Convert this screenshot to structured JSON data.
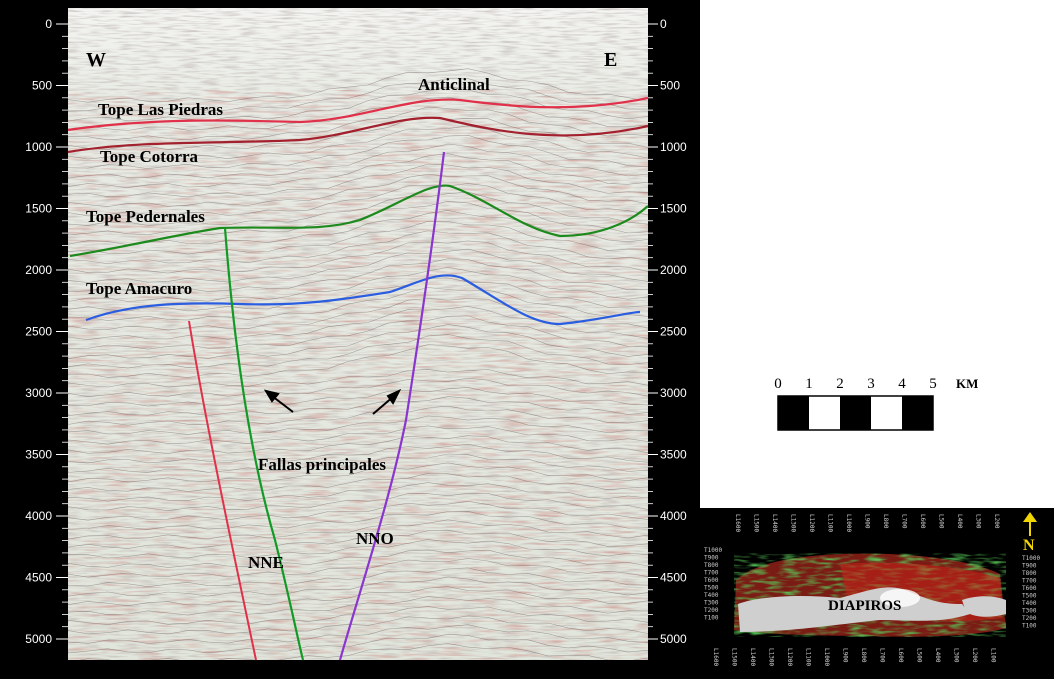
{
  "seismic_section": {
    "west_label": "W",
    "east_label": "E",
    "depth_ticks": [
      "0",
      "500",
      "1000",
      "1500",
      "2000",
      "2500",
      "3000",
      "3500",
      "4000",
      "4500",
      "5000"
    ],
    "horizons": [
      {
        "label": "Tope Las Piedras",
        "color": "#e0304a"
      },
      {
        "label": "Tope Cotorra",
        "color": "#a3202e"
      },
      {
        "label": "Tope Pedernales",
        "color": "#1c8a1c"
      },
      {
        "label": "Tope Amacuro",
        "color": "#2a5de0"
      }
    ],
    "structure_label": "Anticlinal",
    "faults_label": "Fallas principales",
    "faults": [
      {
        "label": "",
        "color": "#e0304a"
      },
      {
        "label": "NNE",
        "color": "#139a26"
      },
      {
        "label": "NNO",
        "color": "#8a35d0"
      }
    ]
  },
  "scale": {
    "ticks": [
      "0",
      "1",
      "2",
      "3",
      "4",
      "5"
    ],
    "unit": "KM"
  },
  "inset_map": {
    "label": "DIAPIROS",
    "north_label": "N",
    "north_color": "#f2d600",
    "top_ticks": [
      "L1600",
      "L1500",
      "L1400",
      "L1300",
      "L1200",
      "L1100",
      "L1000",
      "L900",
      "L800",
      "L700",
      "L600",
      "L500",
      "L400",
      "L300",
      "L200"
    ],
    "bottom_ticks": [
      "L1600",
      "L1500",
      "L1400",
      "L1300",
      "L1200",
      "L1100",
      "L1000",
      "L900",
      "L800",
      "L700",
      "L600",
      "L500",
      "L400",
      "L300",
      "L200",
      "L100"
    ],
    "left_ticks": [
      "T1000",
      "T900",
      "T800",
      "T700",
      "T600",
      "T500",
      "T400",
      "T300",
      "T200",
      "T100"
    ],
    "right_ticks": [
      "T1000",
      "T900",
      "T800",
      "T700",
      "T600",
      "T500",
      "T400",
      "T300",
      "T200",
      "T100"
    ]
  }
}
